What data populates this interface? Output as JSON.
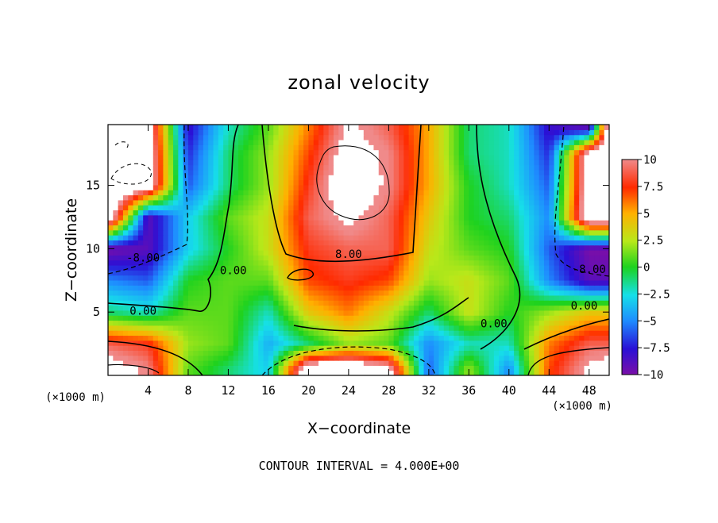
{
  "chart_data": {
    "type": "heatmap",
    "title": "zonal velocity",
    "xlabel": "X−coordinate",
    "ylabel": "Z−coordinate",
    "x_unit_label_left": "(×1000 m)",
    "x_unit_label_right": "(×1000 m)",
    "footer": "CONTOUR INTERVAL = 4.000E+00",
    "xlim": [
      0,
      50
    ],
    "ylim": [
      0,
      19.8
    ],
    "x_ticks": [
      {
        "value": 4,
        "label": "4"
      },
      {
        "value": 8,
        "label": "8"
      },
      {
        "value": 12,
        "label": "12"
      },
      {
        "value": 16,
        "label": "16"
      },
      {
        "value": 20,
        "label": "20"
      },
      {
        "value": 24,
        "label": "24"
      },
      {
        "value": 28,
        "label": "28"
      },
      {
        "value": 32,
        "label": "32"
      },
      {
        "value": 36,
        "label": "36"
      },
      {
        "value": 40,
        "label": "40"
      },
      {
        "value": 44,
        "label": "44"
      },
      {
        "value": 48,
        "label": "48"
      }
    ],
    "y_ticks": [
      {
        "value": 5,
        "label": "5"
      },
      {
        "value": 10,
        "label": "10"
      },
      {
        "value": 15,
        "label": "15"
      }
    ],
    "colorbar": {
      "min": -10,
      "max": 10,
      "ticks": [
        {
          "value": 10,
          "label": "10"
        },
        {
          "value": 7.5,
          "label": "7.5"
        },
        {
          "value": 5,
          "label": "5"
        },
        {
          "value": 2.5,
          "label": "2.5"
        },
        {
          "value": 0,
          "label": "0"
        },
        {
          "value": -2.5,
          "label": "−2.5"
        },
        {
          "value": -5,
          "label": "−5"
        },
        {
          "value": -7.5,
          "label": "−7.5"
        },
        {
          "value": -10,
          "label": "−10"
        }
      ]
    },
    "contour_labels": [
      {
        "text": "8.00",
        "x": 24,
        "z": 9.6
      },
      {
        "text": "-8.00",
        "x": 3.5,
        "z": 9.3
      },
      {
        "text": "-8.00",
        "x": 48,
        "z": 8.4
      },
      {
        "text": "0.00",
        "x": 3.5,
        "z": 5.1
      },
      {
        "text": "0.00",
        "x": 12.5,
        "z": 8.3
      },
      {
        "text": "0.00",
        "x": 38.5,
        "z": 4.1
      },
      {
        "text": "0.00",
        "x": 47.5,
        "z": 5.5
      }
    ],
    "field_samples": {
      "x": [
        0,
        4,
        8,
        12,
        16,
        20,
        24,
        28,
        32,
        36,
        40,
        44,
        48,
        50
      ],
      "z": [
        0.5,
        2.5,
        5,
        7.5,
        10,
        12.5,
        15,
        17.5,
        19.5
      ],
      "values": [
        [
          12,
          10,
          1,
          -1,
          -3,
          14,
          14,
          12,
          -6,
          2,
          -5,
          7,
          11,
          12
        ],
        [
          9,
          8,
          2,
          1,
          -4,
          -1,
          2,
          1,
          -5,
          -2,
          -2,
          6,
          9,
          9
        ],
        [
          -1,
          -2,
          1,
          1,
          -2,
          4,
          6,
          3,
          -1,
          3,
          0,
          2,
          4,
          4
        ],
        [
          -5,
          -6,
          0,
          1,
          1,
          7,
          8,
          7,
          2,
          3,
          1,
          -5,
          -9,
          -9
        ],
        [
          -10,
          -9,
          -3,
          0,
          3,
          8,
          9,
          9,
          3,
          1,
          0,
          -6,
          -10,
          -10
        ],
        [
          14,
          -9,
          -3,
          1,
          3,
          9,
          11,
          9,
          4,
          0,
          -1,
          -5,
          14,
          14
        ],
        [
          14,
          13,
          -6,
          -1,
          2,
          8,
          13,
          10,
          5,
          0,
          -2,
          -6,
          13,
          14
        ],
        [
          13,
          13,
          -7,
          -1,
          2,
          7,
          12,
          10,
          5,
          -1,
          -2,
          -7,
          13,
          14
        ],
        [
          13,
          12,
          -8,
          -2,
          1,
          6,
          11,
          9,
          5,
          -1,
          -2,
          -8,
          -9,
          13
        ]
      ]
    }
  }
}
